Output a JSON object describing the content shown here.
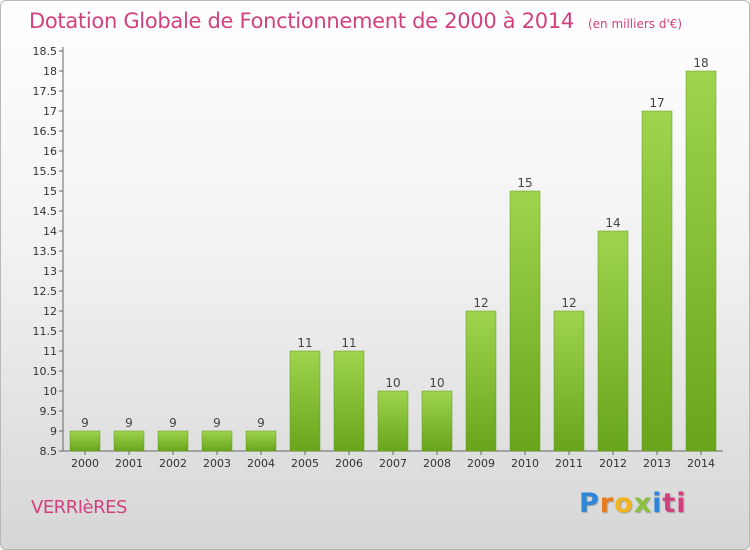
{
  "chart_data": {
    "type": "bar",
    "title": "Dotation Globale de Fonctionnement de 2000 à 2014",
    "subtitle": "(en milliers d'€)",
    "categories": [
      "2000",
      "2001",
      "2002",
      "2003",
      "2004",
      "2005",
      "2006",
      "2007",
      "2008",
      "2009",
      "2010",
      "2011",
      "2012",
      "2013",
      "2014"
    ],
    "values": [
      9,
      9,
      9,
      9,
      9,
      11,
      11,
      10,
      10,
      12,
      15,
      12,
      14,
      17,
      18
    ],
    "ylim": [
      8.5,
      18.5
    ],
    "yticks": [
      "8.5",
      "9",
      "9.5",
      "10",
      "10.5",
      "11",
      "11.5",
      "12",
      "12.5",
      "13",
      "13.5",
      "14",
      "14.5",
      "15",
      "15.5",
      "16",
      "16.5",
      "17",
      "17.5",
      "18",
      "18.5"
    ],
    "grid": false,
    "bar_color": "#7fbf2e"
  },
  "commune": "VERRIèRES",
  "logo": {
    "letters": [
      "P",
      "r",
      "o",
      "x",
      "i",
      "ti"
    ]
  }
}
